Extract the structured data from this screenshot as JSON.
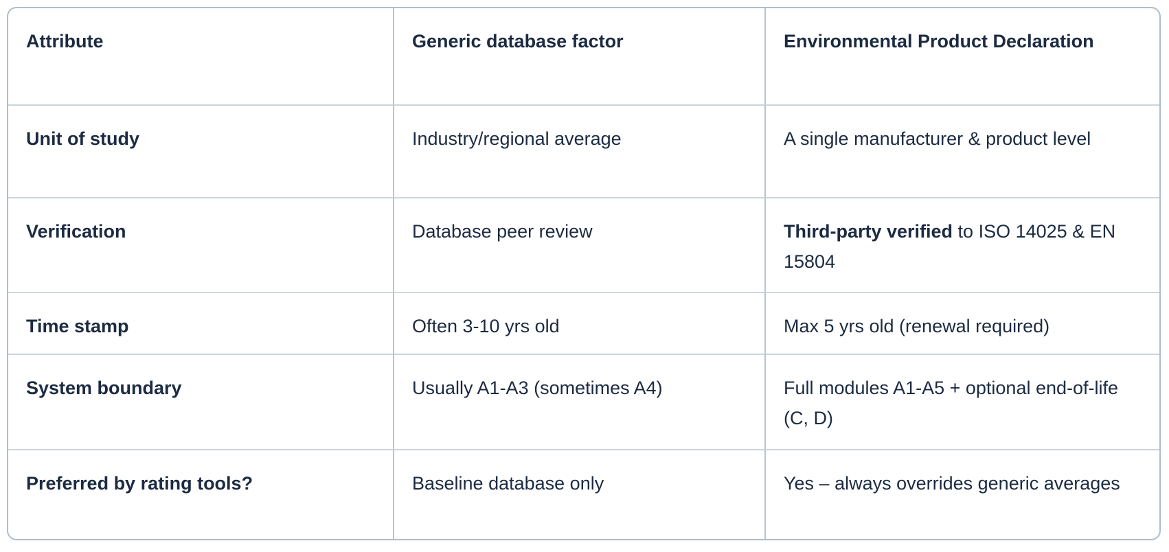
{
  "table": {
    "accent_text_color": "#1c2b42",
    "outer_border_color": "#aebdca",
    "vertical_divider_color": "#b6c4d0",
    "horizontal_divider_color": "#ccd5dc",
    "columns": [
      {
        "label": "Attribute"
      },
      {
        "label": "Generic database factor"
      },
      {
        "label": "Environmental Product Declaration"
      }
    ],
    "rows": [
      {
        "attribute": "Unit of study",
        "generic": "Industry/regional average",
        "epd_bold": "",
        "epd_rest": "A single manufacturer & product level"
      },
      {
        "attribute": "Verification",
        "generic": "Database peer review",
        "epd_bold": "Third-party verified",
        "epd_rest": " to ISO 14025 & EN 15804"
      },
      {
        "attribute": "Time stamp",
        "generic": "Often 3-10 yrs old",
        "epd_bold": "",
        "epd_rest": "Max 5 yrs old (renewal required)"
      },
      {
        "attribute": "System boundary",
        "generic": "Usually A1-A3 (sometimes A4)",
        "epd_bold": "",
        "epd_rest": "Full modules A1-A5 + optional end-of-life (C, D)"
      },
      {
        "attribute": "Preferred by rating tools?",
        "generic": "Baseline database only",
        "epd_bold": "",
        "epd_rest": "Yes – always overrides generic averages"
      }
    ]
  }
}
